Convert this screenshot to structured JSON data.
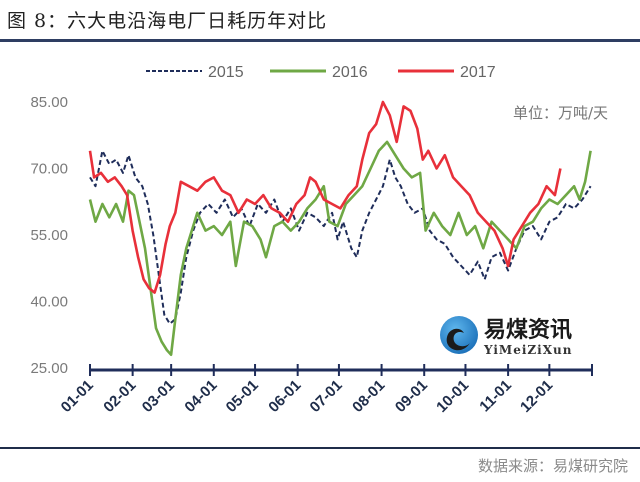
{
  "header": {
    "title": "图 8：六大电沿海电厂日耗历年对比"
  },
  "footer": {
    "source": "数据来源：易煤研究院"
  },
  "watermark": {
    "name_cn": "易煤资讯",
    "name_en": "YiMeiZiXun"
  },
  "chart_data": {
    "type": "line",
    "title": "六大电沿海电厂日耗历年对比",
    "unit_label": "单位：万吨/天",
    "xlabel": "",
    "ylabel": "",
    "x_unit": "day of year",
    "xlim": [
      0,
      365
    ],
    "ylim": [
      25,
      85
    ],
    "yticks": [
      25,
      40,
      55,
      70,
      85
    ],
    "ytick_labels": [
      "25.00",
      "40.00",
      "55.00",
      "70.00",
      "85.00"
    ],
    "xticks": [
      0,
      31,
      59,
      90,
      120,
      151,
      181,
      212,
      243,
      273,
      304,
      334
    ],
    "xtick_labels": [
      "01-01",
      "02-01",
      "03-01",
      "04-01",
      "05-01",
      "06-01",
      "07-01",
      "08-01",
      "09-01",
      "10-01",
      "11-01",
      "12-01"
    ],
    "grid": false,
    "legend_position": "top-center",
    "series": [
      {
        "name": "2015",
        "color": "#1f2d5a",
        "style": "dashed",
        "points": [
          [
            0,
            68
          ],
          [
            4,
            66
          ],
          [
            9,
            74
          ],
          [
            14,
            71
          ],
          [
            19,
            72
          ],
          [
            24,
            69
          ],
          [
            28,
            73
          ],
          [
            33,
            68
          ],
          [
            38,
            66
          ],
          [
            42,
            62
          ],
          [
            46,
            55
          ],
          [
            50,
            46
          ],
          [
            54,
            37
          ],
          [
            58,
            35
          ],
          [
            62,
            36
          ],
          [
            66,
            42
          ],
          [
            70,
            50
          ],
          [
            75,
            56
          ],
          [
            80,
            60
          ],
          [
            86,
            62
          ],
          [
            92,
            60
          ],
          [
            98,
            63
          ],
          [
            104,
            59
          ],
          [
            110,
            61
          ],
          [
            116,
            57
          ],
          [
            122,
            62
          ],
          [
            128,
            60
          ],
          [
            134,
            63
          ],
          [
            140,
            58
          ],
          [
            146,
            61
          ],
          [
            152,
            56
          ],
          [
            158,
            60
          ],
          [
            164,
            59
          ],
          [
            170,
            57
          ],
          [
            176,
            60
          ],
          [
            180,
            54
          ],
          [
            184,
            58
          ],
          [
            190,
            52
          ],
          [
            194,
            50
          ],
          [
            198,
            56
          ],
          [
            203,
            60
          ],
          [
            208,
            63
          ],
          [
            213,
            66
          ],
          [
            218,
            72
          ],
          [
            222,
            68
          ],
          [
            226,
            66
          ],
          [
            231,
            62
          ],
          [
            236,
            60
          ],
          [
            242,
            61
          ],
          [
            247,
            56
          ],
          [
            252,
            54
          ],
          [
            258,
            53
          ],
          [
            264,
            50
          ],
          [
            270,
            48
          ],
          [
            276,
            46
          ],
          [
            282,
            49
          ],
          [
            287,
            45
          ],
          [
            292,
            50
          ],
          [
            298,
            51
          ],
          [
            304,
            47
          ],
          [
            310,
            52
          ],
          [
            316,
            56
          ],
          [
            322,
            57
          ],
          [
            328,
            54
          ],
          [
            334,
            58
          ],
          [
            340,
            59
          ],
          [
            346,
            62
          ],
          [
            352,
            61
          ],
          [
            358,
            63
          ],
          [
            364,
            66
          ]
        ]
      },
      {
        "name": "2016",
        "color": "#6fa845",
        "style": "solid",
        "points": [
          [
            0,
            63
          ],
          [
            4,
            58
          ],
          [
            9,
            62
          ],
          [
            14,
            59
          ],
          [
            19,
            62
          ],
          [
            24,
            58
          ],
          [
            28,
            65
          ],
          [
            32,
            64
          ],
          [
            36,
            58
          ],
          [
            40,
            52
          ],
          [
            44,
            43
          ],
          [
            48,
            34
          ],
          [
            52,
            31
          ],
          [
            56,
            29
          ],
          [
            59,
            28
          ],
          [
            62,
            36
          ],
          [
            66,
            46
          ],
          [
            70,
            52
          ],
          [
            74,
            56
          ],
          [
            78,
            60
          ],
          [
            84,
            56
          ],
          [
            90,
            57
          ],
          [
            96,
            55
          ],
          [
            102,
            58
          ],
          [
            106,
            48
          ],
          [
            112,
            58
          ],
          [
            118,
            57
          ],
          [
            124,
            54
          ],
          [
            128,
            50
          ],
          [
            134,
            57
          ],
          [
            140,
            58
          ],
          [
            146,
            56
          ],
          [
            152,
            58
          ],
          [
            158,
            61
          ],
          [
            164,
            63
          ],
          [
            170,
            66
          ],
          [
            174,
            58
          ],
          [
            180,
            57
          ],
          [
            186,
            62
          ],
          [
            192,
            64
          ],
          [
            198,
            66
          ],
          [
            204,
            70
          ],
          [
            210,
            74
          ],
          [
            216,
            76
          ],
          [
            222,
            73
          ],
          [
            228,
            70
          ],
          [
            234,
            68
          ],
          [
            240,
            69
          ],
          [
            244,
            56
          ],
          [
            250,
            60
          ],
          [
            256,
            57
          ],
          [
            262,
            55
          ],
          [
            268,
            60
          ],
          [
            274,
            55
          ],
          [
            280,
            57
          ],
          [
            286,
            52
          ],
          [
            292,
            58
          ],
          [
            298,
            56
          ],
          [
            304,
            54
          ],
          [
            310,
            52
          ],
          [
            316,
            57
          ],
          [
            322,
            58
          ],
          [
            328,
            61
          ],
          [
            334,
            63
          ],
          [
            340,
            62
          ],
          [
            346,
            64
          ],
          [
            352,
            66
          ],
          [
            356,
            63
          ],
          [
            360,
            67
          ],
          [
            364,
            74
          ]
        ]
      },
      {
        "name": "2017",
        "color": "#e8303a",
        "style": "solid",
        "points": [
          [
            0,
            74
          ],
          [
            3,
            68
          ],
          [
            8,
            69
          ],
          [
            13,
            67
          ],
          [
            18,
            68
          ],
          [
            23,
            66
          ],
          [
            27,
            64
          ],
          [
            31,
            56
          ],
          [
            35,
            50
          ],
          [
            39,
            45
          ],
          [
            43,
            43
          ],
          [
            47,
            42
          ],
          [
            51,
            46
          ],
          [
            55,
            53
          ],
          [
            58,
            57
          ],
          [
            62,
            60
          ],
          [
            66,
            67
          ],
          [
            72,
            66
          ],
          [
            78,
            65
          ],
          [
            84,
            67
          ],
          [
            90,
            68
          ],
          [
            96,
            65
          ],
          [
            102,
            64
          ],
          [
            108,
            60
          ],
          [
            114,
            63
          ],
          [
            120,
            62
          ],
          [
            126,
            64
          ],
          [
            132,
            61
          ],
          [
            138,
            60
          ],
          [
            144,
            58
          ],
          [
            150,
            62
          ],
          [
            156,
            64
          ],
          [
            160,
            68
          ],
          [
            164,
            67
          ],
          [
            170,
            63
          ],
          [
            176,
            62
          ],
          [
            182,
            61
          ],
          [
            188,
            64
          ],
          [
            194,
            66
          ],
          [
            198,
            72
          ],
          [
            203,
            78
          ],
          [
            208,
            80
          ],
          [
            213,
            85
          ],
          [
            218,
            82
          ],
          [
            223,
            76
          ],
          [
            228,
            84
          ],
          [
            233,
            83
          ],
          [
            238,
            79
          ],
          [
            242,
            72
          ],
          [
            246,
            74
          ],
          [
            252,
            70
          ],
          [
            258,
            73
          ],
          [
            264,
            68
          ],
          [
            270,
            66
          ],
          [
            276,
            64
          ],
          [
            282,
            60
          ],
          [
            288,
            58
          ],
          [
            294,
            56
          ],
          [
            300,
            52
          ],
          [
            304,
            48
          ],
          [
            308,
            54
          ],
          [
            314,
            57
          ],
          [
            320,
            60
          ],
          [
            326,
            62
          ],
          [
            332,
            66
          ],
          [
            338,
            64
          ],
          [
            342,
            70
          ]
        ]
      }
    ]
  }
}
